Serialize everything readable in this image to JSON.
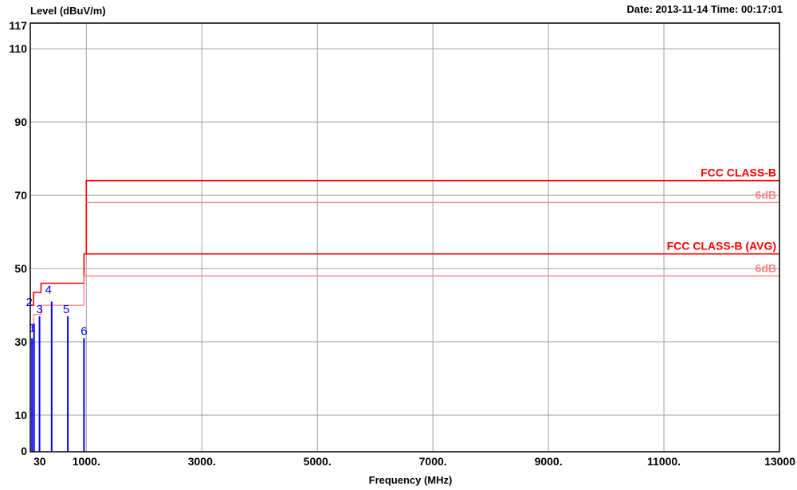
{
  "header": {
    "ylabel": "Level (dBuV/m)",
    "datetime": "Date: 2013-11-14  Time: 00:17:01",
    "xlabel": "Frequency (MHz)"
  },
  "chart_data": {
    "type": "line",
    "xlabel": "Frequency (MHz)",
    "ylabel": "Level (dBuV/m)",
    "xlim": [
      30,
      13000
    ],
    "ylim": [
      0,
      117
    ],
    "x_ticks": [
      {
        "value": 30,
        "label": "30"
      },
      {
        "value": 1000,
        "label": "1000."
      },
      {
        "value": 3000,
        "label": "3000."
      },
      {
        "value": 5000,
        "label": "5000."
      },
      {
        "value": 7000,
        "label": "7000."
      },
      {
        "value": 9000,
        "label": "9000."
      },
      {
        "value": 11000,
        "label": "11000."
      },
      {
        "value": 13000,
        "label": "13000"
      }
    ],
    "y_ticks": [
      {
        "value": 0,
        "label": "0"
      },
      {
        "value": 10,
        "label": "10"
      },
      {
        "value": 30,
        "label": "30"
      },
      {
        "value": 50,
        "label": "50"
      },
      {
        "value": 70,
        "label": "70"
      },
      {
        "value": 90,
        "label": "90"
      },
      {
        "value": 110,
        "label": "110"
      },
      {
        "value": 117,
        "label": "117"
      }
    ],
    "grid": true,
    "limit_lines": [
      {
        "name": "FCC CLASS-B",
        "color": "#ff0000",
        "points": [
          [
            30,
            40
          ],
          [
            88,
            40
          ],
          [
            88,
            43.5
          ],
          [
            216,
            43.5
          ],
          [
            216,
            46
          ],
          [
            960,
            46
          ],
          [
            960,
            54
          ],
          [
            1000,
            54
          ],
          [
            1000,
            74
          ],
          [
            13000,
            74
          ]
        ]
      },
      {
        "name": "6dB",
        "color": "#ff8080",
        "points": [
          [
            1000,
            68
          ],
          [
            13000,
            68
          ]
        ]
      },
      {
        "name": "FCC CLASS-B (AVG)",
        "color": "#ff0000",
        "points": [
          [
            1000,
            54
          ],
          [
            13000,
            54
          ]
        ]
      },
      {
        "name": "6dB",
        "color": "#ff8080",
        "points": [
          [
            30,
            34
          ],
          [
            88,
            34
          ],
          [
            88,
            37.5
          ],
          [
            216,
            37.5
          ],
          [
            216,
            40
          ],
          [
            960,
            40
          ],
          [
            960,
            48
          ],
          [
            13000,
            48
          ]
        ]
      }
    ],
    "markers": [
      {
        "label": "1",
        "x": 60,
        "y": 31
      },
      {
        "label": "2",
        "x": 95,
        "y": 35
      },
      {
        "label": "3",
        "x": 190,
        "y": 37
      },
      {
        "label": "4",
        "x": 400,
        "y": 41
      },
      {
        "label": "5",
        "x": 680,
        "y": 37
      },
      {
        "label": "6",
        "x": 960,
        "y": 31
      }
    ],
    "colors": {
      "limit": "#ff0000",
      "margin": "#ff8080",
      "marker": "#0000ff",
      "grid": "#a0a0a0"
    }
  }
}
